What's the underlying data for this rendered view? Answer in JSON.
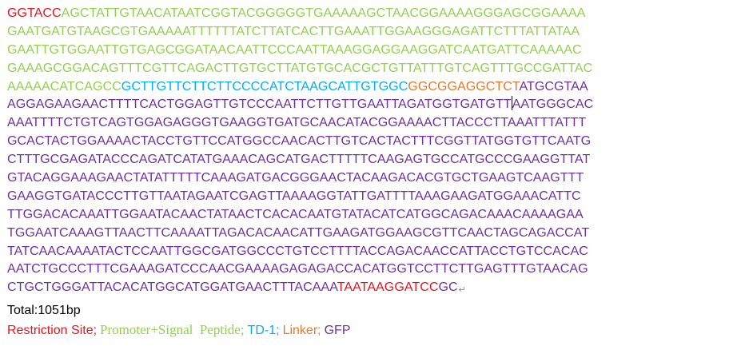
{
  "colors": {
    "restriction": "#e8141e",
    "promoter": "#92d050",
    "td1": "#00b0f0",
    "linker": "#e8782b",
    "gfp": "#7030a0"
  },
  "sequence_lines": [
    [
      {
        "t": "GGTACC",
        "c": "restriction"
      },
      {
        "t": "AGCTATTGTAACATAATCGGTACGGGGGTGAAAAAGCTAACGGAAAAGGGAGCGGAAAA",
        "c": "promoter"
      }
    ],
    [
      {
        "t": "GAATGATGTAAGCGTGAAAAATTTTTTATCTTATCACTTGAAATTGGAAGGGAGATTCTTTATTATAA",
        "c": "promoter"
      }
    ],
    [
      {
        "t": "GAATTGTGGAATTGTGAGCGGATAACAATTCCCAATTAAAGGAGGAAGGATCAATGATTCAAAAAC",
        "c": "promoter"
      }
    ],
    [
      {
        "t": "GAAAGCGGACAGTTTCGTTCAGACTTGTGCTTATGTGCACGCTGTTATTTGTCAGTTTGCCGATTAC",
        "c": "promoter"
      }
    ],
    [
      {
        "t": "AAAAACATCAGCC",
        "c": "promoter"
      },
      {
        "t": "GCTTGTTCTTCTTCCCCATCTAAGCATTGTGGC",
        "c": "td1"
      },
      {
        "t": "GGCGGAGGCTCT",
        "c": "linker"
      },
      {
        "t": "ATGCGTAA",
        "c": "gfp"
      }
    ],
    [
      {
        "t": "AGGAGAAGAACTTTTCACTGGAGTTGTCCCAATTCTTGTTGAATTAGATGGTGATGTT",
        "c": "gfp",
        "cursor": true
      },
      {
        "t": "AATGGGCAC",
        "c": "gfp"
      }
    ],
    [
      {
        "t": "AAATTTTCTGTCAGTGGAGAGGGTGAAGGTGATGCAACATACGGAAAACTTACCCTTAAATTTATTT",
        "c": "gfp"
      }
    ],
    [
      {
        "t": "GCACTACTGGAAAACTACCTGTTCCATGGCCAACACTTGTCACTACTTTCGGTTATGGTGTTCAATG",
        "c": "gfp"
      }
    ],
    [
      {
        "t": "CTTTGCGAGATACCCAGATCATATGAAACAGCATGACTTTTTCAAGAGTGCCATGCCCGAAGGTTAT",
        "c": "gfp"
      }
    ],
    [
      {
        "t": "GTACAGGAAAGAACTATATTTTTCAAAGATGACGGGAACTACAAGACACGTGCTGAAGTCAAGTTT",
        "c": "gfp"
      }
    ],
    [
      {
        "t": "GAAGGTGATACCCTTGTTAATAGAATCGAGTTAAAAGGTATTGATTTTAAAGAAGATGGAAACATTC",
        "c": "gfp"
      }
    ],
    [
      {
        "t": "TTGGACACAAATTGGAATACAACTATAACTCACACAATGTATACATCATGGCAGACAAACAAAAGAA",
        "c": "gfp"
      }
    ],
    [
      {
        "t": "TGGAATCAAAGTTAACTTCAAAATTAGACACAACATTGAAGATGGAAGCGTTCAACTAGCAGACCAT",
        "c": "gfp"
      }
    ],
    [
      {
        "t": "TATCAACAAAATACTCCAATTGGCGATGGCCCTGTCCTTTTACCAGACAACCATTACCTGTCCACAC",
        "c": "gfp"
      }
    ],
    [
      {
        "t": "AATCTGCCCTTTCGAAAGATCCCAACGAAAAGAGAGACCACATGGTCCTTCTTGAGTTTGTAACAG",
        "c": "gfp"
      }
    ],
    [
      {
        "t": "CTGCTGGGATTACACATGGCATGGATGAACTTTACAAA",
        "c": "gfp"
      },
      {
        "t": "TAATAAGGATCC",
        "c": "restriction"
      },
      {
        "t": "GC",
        "c": "gfp"
      }
    ]
  ],
  "paragraph_mark": "↵",
  "total": "Total:1051bp",
  "legend": [
    {
      "label": "Restriction Site;",
      "c": "restriction",
      "font": "sans"
    },
    {
      "label": "Promoter+Signal  Peptide;",
      "c": "promoter",
      "font": "serif"
    },
    {
      "label": "TD-1;",
      "c": "td1",
      "font": "sans"
    },
    {
      "label": "Linker;",
      "c": "linker",
      "font": "sans"
    },
    {
      "label": "GFP",
      "c": "gfp",
      "font": "sans"
    }
  ]
}
